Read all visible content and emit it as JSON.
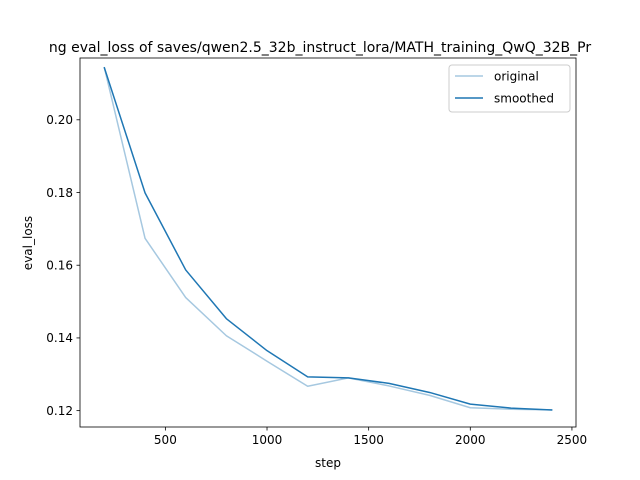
{
  "chart_data": {
    "type": "line",
    "title": "ng eval_loss of saves/qwen2.5_32b_instruct_lora/MATH_training_QwQ_32B_Pr",
    "xlabel": "step",
    "ylabel": "eval_loss",
    "xlim": [
      80,
      2520
    ],
    "ylim": [
      0.1155,
      0.217
    ],
    "x_ticks": [
      500,
      1000,
      1500,
      2000,
      2500
    ],
    "x_tick_labels": [
      "500",
      "1000",
      "1500",
      "2000",
      "2500"
    ],
    "y_ticks": [
      0.12,
      0.14,
      0.16,
      0.18,
      0.2
    ],
    "y_tick_labels": [
      "0.12",
      "0.14",
      "0.16",
      "0.18",
      "0.20"
    ],
    "grid": false,
    "legend_position": "top-right",
    "x": [
      200,
      400,
      600,
      800,
      1000,
      1200,
      1400,
      1600,
      1800,
      2000,
      2200,
      2400
    ],
    "series": [
      {
        "name": "original",
        "color": "#a6c8e0",
        "values": [
          0.2143,
          0.1674,
          0.1511,
          0.1406,
          0.1336,
          0.1267,
          0.129,
          0.1268,
          0.1242,
          0.1208,
          0.1204,
          0.1202
        ]
      },
      {
        "name": "smoothed",
        "color": "#1f77b4",
        "values": [
          0.2143,
          0.1799,
          0.1587,
          0.1453,
          0.1365,
          0.1293,
          0.129,
          0.1275,
          0.125,
          0.1218,
          0.1207,
          0.1202
        ]
      }
    ]
  }
}
